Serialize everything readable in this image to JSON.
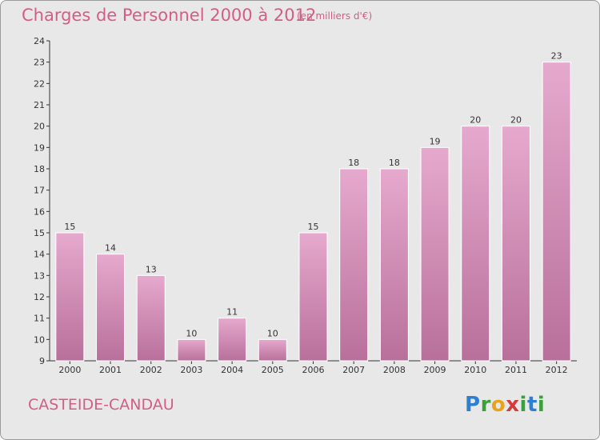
{
  "header": {
    "title": "Charges de Personnel 2000 à 2012",
    "subtitle": "(en milliers d'€)"
  },
  "footer": {
    "place": "CASTEIDE-CANDAU",
    "logo": "Proxiti"
  },
  "colors": {
    "background": "#e8e8e8",
    "bar_top": "#e6a9ce",
    "bar_bottom": "#b8709a",
    "title": "#d45d86"
  },
  "chart_data": {
    "type": "bar",
    "title": "Charges de Personnel 2000 à 2012",
    "subtitle": "(en milliers d'€)",
    "categories": [
      "2000",
      "2001",
      "2002",
      "2003",
      "2004",
      "2005",
      "2006",
      "2007",
      "2008",
      "2009",
      "2010",
      "2011",
      "2012"
    ],
    "values": [
      15,
      14,
      13,
      10,
      11,
      10,
      15,
      18,
      18,
      19,
      20,
      20,
      23
    ],
    "ylim": [
      9,
      24
    ],
    "yticks": [
      9,
      10,
      11,
      12,
      13,
      14,
      15,
      16,
      17,
      18,
      19,
      20,
      21,
      22,
      23,
      24
    ],
    "grid": false,
    "data_labels": true
  }
}
